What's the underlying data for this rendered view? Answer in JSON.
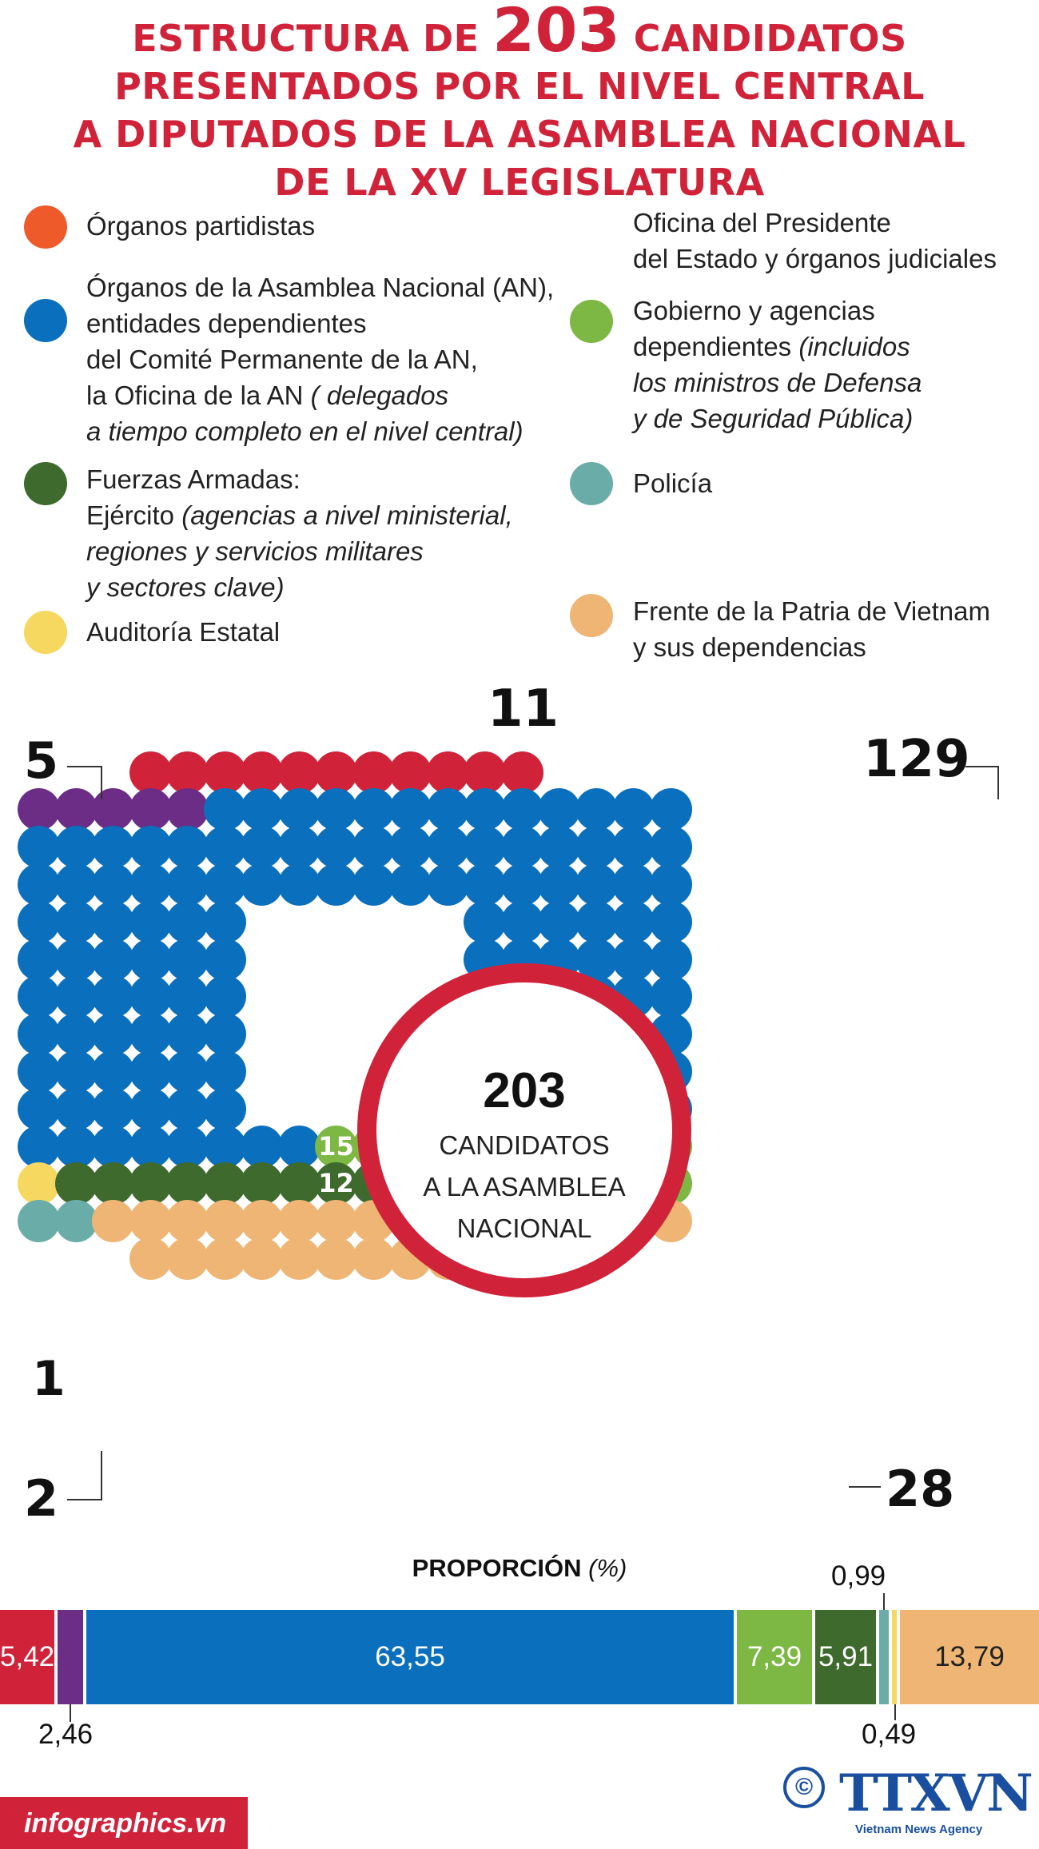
{
  "title": {
    "line1_pre": "ESTRUCTURA DE ",
    "line1_num": "203",
    "line1_post": " CANDIDATOS",
    "line2": "PRESENTADOS POR EL NIVEL CENTRAL",
    "line3": "A DIPUTADOS DE LA ASAMBLEA NACIONAL",
    "line4": "DE LA XV LEGISLATURA"
  },
  "colors": {
    "party": "#d0233a",
    "president": "#6b2d86",
    "an": "#0a6fbd",
    "gov": "#7cb843",
    "army": "#3e6a2d",
    "audit": "#f6d860",
    "police": "#6aada8",
    "front": "#eeb574",
    "party_legend": "#ef5a2b"
  },
  "legend": {
    "party": "Órganos partidistas",
    "an_1": "Órganos de la Asamblea Nacional (AN),",
    "an_2": "entidades dependientes",
    "an_3": "del Comité Permanente de la AN,",
    "an_4a": "la Oficina de la AN ",
    "an_4b": "( delegados",
    "an_5": "a tiempo completo en el nivel central)",
    "army_1": "Fuerzas Armadas:",
    "army_2a": "Ejército ",
    "army_2b": "(agencias a nivel ministerial,",
    "army_3": "regiones y servicios militares",
    "army_4": "y sectores clave)",
    "audit": "Auditoría Estatal",
    "pres_1": "Oficina del Presidente",
    "pres_2": "del Estado y órganos judiciales",
    "gov_1": "Gobierno y agencias",
    "gov_2a": "dependientes ",
    "gov_2b": "(incluidos",
    "gov_3": "los ministros de Defensa",
    "gov_4": "y de Seguridad Pública)",
    "police": "Policía",
    "front_1": "Frente de la Patria de Vietnam",
    "front_2": "y sus dependencias"
  },
  "counts": {
    "party": "11",
    "president": "5",
    "an": "129",
    "gov": "15",
    "army": "12",
    "audit": "1",
    "police": "2",
    "front": "28"
  },
  "center": {
    "number": "203",
    "line1": "CANDIDATOS",
    "line2": "A LA ASAMBLEA",
    "line3": "NACIONAL"
  },
  "proportion": {
    "title": "PROPORCIÓN",
    "unit": "(%)",
    "values": {
      "party": "5,42",
      "president": "2,46",
      "an": "63,55",
      "gov": "7,39",
      "army": "5,91",
      "police": "0,99",
      "audit": "0,49",
      "front": "13,79"
    }
  },
  "footer": {
    "site": "infographics.vn",
    "copyright": "©",
    "agency": "TTXVN",
    "agency_sub": "Vietnam News Agency"
  }
}
